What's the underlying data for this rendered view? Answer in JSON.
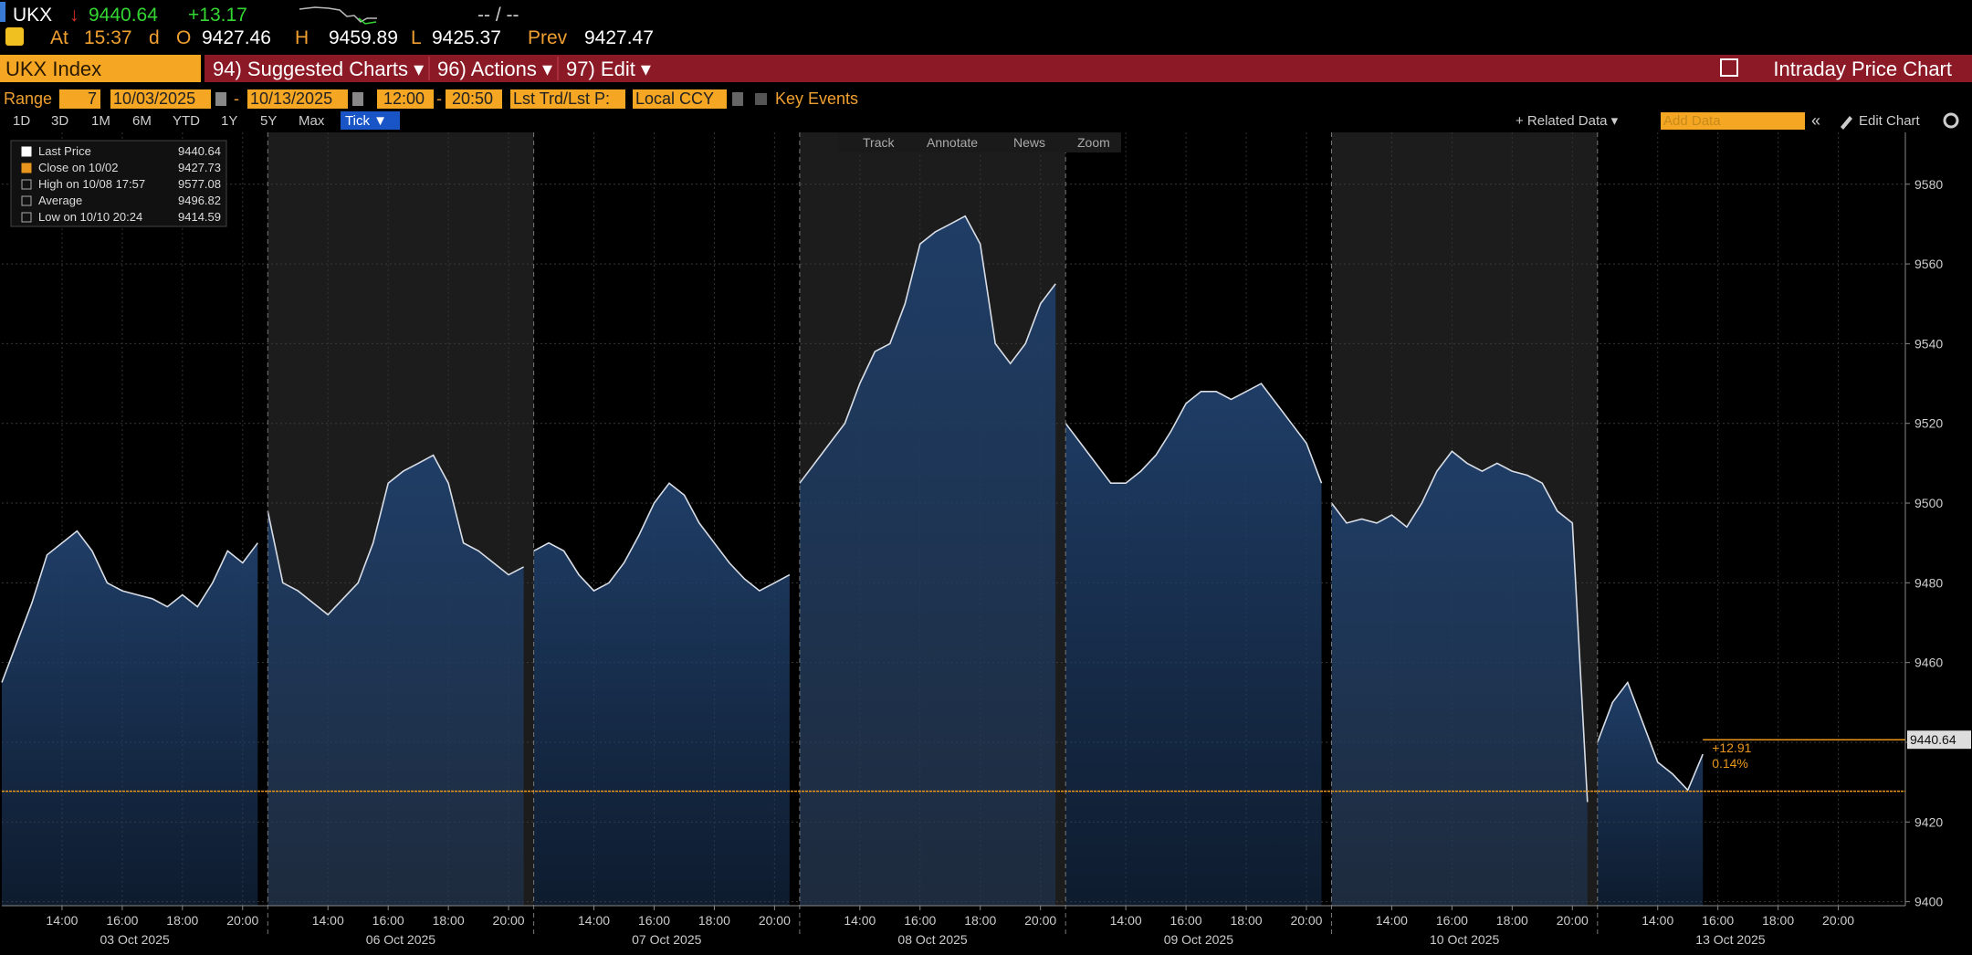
{
  "header": {
    "ticker": "UKX",
    "arrow": "↓",
    "price": "9440.64",
    "change": "+13.17",
    "status": "-- / --",
    "at_label": "At",
    "time": "15:37",
    "d": "d",
    "open_label": "O",
    "open": "9427.46",
    "high_label": "H",
    "high": "9459.89",
    "low_label": "L",
    "low": "9425.37",
    "prev_label": "Prev",
    "prev": "9427.47"
  },
  "menu": {
    "security": "UKX Index",
    "items": [
      "94) Suggested Charts ▾",
      "96) Actions ▾",
      "97) Edit ▾"
    ],
    "title": "Intraday Price Chart"
  },
  "range_bar": {
    "label": "Range",
    "count": "7",
    "start": "10/03/2025",
    "end": "10/13/2025",
    "dash": "-",
    "from": "12:00",
    "to": "20:50",
    "price_type": "Lst Trd/Lst P:",
    "currency": "Local CCY",
    "key_events": "Key Events"
  },
  "periods": [
    "1D",
    "3D",
    "1M",
    "6M",
    "YTD",
    "1Y",
    "5Y",
    "Max"
  ],
  "tick": "Tick ▼",
  "related": "+ Related Data ▾",
  "add_data": "Add Data",
  "collapse": "«",
  "edit_chart": "Edit Chart",
  "chart_tools": [
    "Track",
    "Annotate",
    "News",
    "Zoom"
  ],
  "chart_data": {
    "type": "area",
    "line_color": "#d8dde6",
    "area_color": "#1f3d66",
    "close_color": "#e8961e",
    "grid": true,
    "ylim": [
      9399,
      9593
    ],
    "yticks": [
      9400,
      9420,
      9440,
      9460,
      9480,
      9500,
      9520,
      9540,
      9560,
      9580
    ],
    "legend": [
      {
        "label": "Last Price",
        "value": 9440.64
      },
      {
        "label": "Close on 10/02",
        "value": 9427.73
      },
      {
        "label": "High on 10/08 17:57",
        "value": 9577.08
      },
      {
        "label": "Average",
        "value": 9496.82
      },
      {
        "label": "Low on 10/10 20:24",
        "value": 9414.59
      }
    ],
    "change_label": "+12.91",
    "change_pct": "0.14%",
    "days": [
      {
        "label": "03 Oct 2025",
        "categories": [
          null,
          null,
          null,
          null,
          "14:00",
          null,
          null,
          null,
          "16:00",
          null,
          null,
          null,
          "18:00",
          null,
          null,
          null,
          "20:00",
          null
        ],
        "values": [
          9455,
          9465,
          9475,
          9487,
          9490,
          9493,
          9488,
          9480,
          9478,
          9477,
          9476,
          9474,
          9477,
          9474,
          9480,
          9488,
          9485,
          9490
        ]
      },
      {
        "label": "06 Oct 2025",
        "categories": [
          null,
          null,
          null,
          null,
          "14:00",
          null,
          null,
          null,
          "16:00",
          null,
          null,
          null,
          "18:00",
          null,
          null,
          null,
          "20:00",
          null
        ],
        "values": [
          9498,
          9480,
          9478,
          9475,
          9472,
          9476,
          9480,
          9490,
          9505,
          9508,
          9510,
          9512,
          9505,
          9490,
          9488,
          9485,
          9482,
          9484
        ]
      },
      {
        "label": "07 Oct 2025",
        "categories": [
          null,
          null,
          null,
          null,
          "14:00",
          null,
          null,
          null,
          "16:00",
          null,
          null,
          null,
          "18:00",
          null,
          null,
          null,
          "20:00",
          null
        ],
        "values": [
          9488,
          9490,
          9488,
          9482,
          9478,
          9480,
          9485,
          9492,
          9500,
          9505,
          9502,
          9495,
          9490,
          9485,
          9481,
          9478,
          9480,
          9482
        ]
      },
      {
        "label": "08 Oct 2025",
        "categories": [
          null,
          null,
          null,
          null,
          "14:00",
          null,
          null,
          null,
          "16:00",
          null,
          null,
          null,
          "18:00",
          null,
          null,
          null,
          "20:00",
          null
        ],
        "values": [
          9505,
          9510,
          9515,
          9520,
          9530,
          9538,
          9540,
          9550,
          9565,
          9568,
          9570,
          9572,
          9565,
          9540,
          9535,
          9540,
          9550,
          9555
        ]
      },
      {
        "label": "09 Oct 2025",
        "categories": [
          null,
          null,
          null,
          null,
          "14:00",
          null,
          null,
          null,
          "16:00",
          null,
          null,
          null,
          "18:00",
          null,
          null,
          null,
          "20:00",
          null
        ],
        "values": [
          9520,
          9515,
          9510,
          9505,
          9505,
          9508,
          9512,
          9518,
          9525,
          9528,
          9528,
          9526,
          9528,
          9530,
          9525,
          9520,
          9515,
          9505
        ]
      },
      {
        "label": "10 Oct 2025",
        "categories": [
          null,
          null,
          null,
          null,
          "14:00",
          null,
          null,
          null,
          "16:00",
          null,
          null,
          null,
          "18:00",
          null,
          null,
          null,
          "20:00",
          null
        ],
        "values": [
          9500,
          9495,
          9496,
          9495,
          9497,
          9494,
          9500,
          9508,
          9513,
          9510,
          9508,
          9510,
          9508,
          9507,
          9505,
          9498,
          9495,
          9425
        ]
      },
      {
        "label": "13 Oct 2025",
        "categories": [
          null,
          null,
          null,
          null,
          "14:00",
          null,
          null,
          null,
          "16:00",
          null,
          null,
          null,
          "18:00",
          null,
          null,
          null,
          "20:00",
          null
        ],
        "values": [
          9440,
          9450,
          9455,
          9445,
          9435,
          9432,
          9428,
          9437,
          null,
          null,
          null,
          null,
          null,
          null,
          null,
          null,
          null,
          null
        ]
      }
    ]
  }
}
